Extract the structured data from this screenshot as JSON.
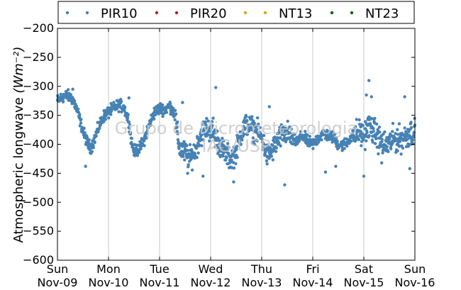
{
  "chart_data": {
    "type": "scatter",
    "ylabel": "Atmospheric longwave",
    "ylabel_unit": "(Wm⁻²)",
    "ylim": [
      -600,
      -200
    ],
    "yticks": [
      -600,
      -550,
      -500,
      -450,
      -400,
      -350,
      -300,
      -250,
      -200
    ],
    "xlim_days": [
      0,
      7
    ],
    "xticks": [
      {
        "day": "Sun",
        "date": "Nov-09"
      },
      {
        "day": "Mon",
        "date": "Nov-10"
      },
      {
        "day": "Tue",
        "date": "Nov-11"
      },
      {
        "day": "Wed",
        "date": "Nov-12"
      },
      {
        "day": "Thu",
        "date": "Nov-13"
      },
      {
        "day": "Fri",
        "date": "Nov-14"
      },
      {
        "day": "Sat",
        "date": "Nov-15"
      },
      {
        "day": "Sun",
        "date": "Nov-16"
      }
    ],
    "grid": "vertical",
    "legend_placement": "top",
    "watermark": [
      "Grupo de Micrometeorologia",
      "IAG/USP"
    ],
    "series": [
      {
        "name": "PIR10",
        "color": "#4682b4",
        "trend": [
          [
            0.0,
            -325
          ],
          [
            0.1,
            -318
          ],
          [
            0.2,
            -316
          ],
          [
            0.3,
            -322
          ],
          [
            0.4,
            -345
          ],
          [
            0.5,
            -378
          ],
          [
            0.6,
            -400
          ],
          [
            0.65,
            -406
          ],
          [
            0.7,
            -398
          ],
          [
            0.8,
            -372
          ],
          [
            0.9,
            -352
          ],
          [
            1.0,
            -345
          ],
          [
            1.1,
            -338
          ],
          [
            1.2,
            -332
          ],
          [
            1.3,
            -336
          ],
          [
            1.4,
            -360
          ],
          [
            1.45,
            -395
          ],
          [
            1.5,
            -412
          ],
          [
            1.6,
            -408
          ],
          [
            1.7,
            -392
          ],
          [
            1.8,
            -365
          ],
          [
            1.9,
            -345
          ],
          [
            2.0,
            -338
          ],
          [
            2.1,
            -340
          ],
          [
            2.2,
            -334
          ],
          [
            2.3,
            -348
          ],
          [
            2.35,
            -385
          ],
          [
            2.4,
            -408
          ],
          [
            2.5,
            -415
          ],
          [
            2.6,
            -425
          ],
          [
            2.7,
            -410
          ],
          [
            2.8,
            -385
          ],
          [
            2.9,
            -372
          ],
          [
            3.0,
            -375
          ],
          [
            3.1,
            -388
          ],
          [
            3.2,
            -405
          ],
          [
            3.3,
            -418
          ],
          [
            3.4,
            -425
          ],
          [
            3.5,
            -412
          ],
          [
            3.6,
            -380
          ],
          [
            3.7,
            -365
          ],
          [
            3.8,
            -372
          ],
          [
            3.9,
            -378
          ],
          [
            4.0,
            -388
          ],
          [
            4.1,
            -420
          ],
          [
            4.2,
            -412
          ],
          [
            4.3,
            -395
          ],
          [
            4.4,
            -385
          ],
          [
            4.5,
            -380
          ],
          [
            4.6,
            -392
          ],
          [
            4.7,
            -395
          ],
          [
            4.8,
            -385
          ],
          [
            4.9,
            -395
          ],
          [
            5.0,
            -400
          ],
          [
            5.1,
            -390
          ],
          [
            5.2,
            -382
          ],
          [
            5.3,
            -385
          ],
          [
            5.4,
            -388
          ],
          [
            5.5,
            -400
          ],
          [
            5.6,
            -402
          ],
          [
            5.7,
            -392
          ],
          [
            5.8,
            -385
          ],
          [
            5.9,
            -378
          ],
          [
            6.0,
            -385
          ],
          [
            6.1,
            -368
          ],
          [
            6.2,
            -378
          ],
          [
            6.3,
            -392
          ],
          [
            6.4,
            -402
          ],
          [
            6.5,
            -398
          ],
          [
            6.6,
            -390
          ],
          [
            6.7,
            -392
          ],
          [
            6.8,
            -388
          ],
          [
            6.9,
            -380
          ],
          [
            7.0,
            -378
          ]
        ],
        "outliers": [
          [
            3.1,
            -302
          ],
          [
            1.4,
            -320
          ],
          [
            2.85,
            -455
          ],
          [
            3.45,
            -465
          ],
          [
            4.45,
            -470
          ],
          [
            5.25,
            -448
          ],
          [
            5.45,
            -438
          ],
          [
            6.0,
            -455
          ],
          [
            6.1,
            -290
          ],
          [
            6.15,
            -318
          ],
          [
            6.05,
            -315
          ],
          [
            6.35,
            -432
          ],
          [
            6.9,
            -442
          ],
          [
            6.8,
            -318
          ],
          [
            4.15,
            -335
          ],
          [
            3.05,
            -355
          ],
          [
            2.45,
            -328
          ],
          [
            0.55,
            -438
          ],
          [
            0.3,
            -305
          ],
          [
            2.55,
            -450
          ]
        ]
      },
      {
        "name": "PIR20",
        "color": "#b22222"
      },
      {
        "name": "NT13",
        "color": "#daa520"
      },
      {
        "name": "NT23",
        "color": "#006400"
      }
    ]
  }
}
